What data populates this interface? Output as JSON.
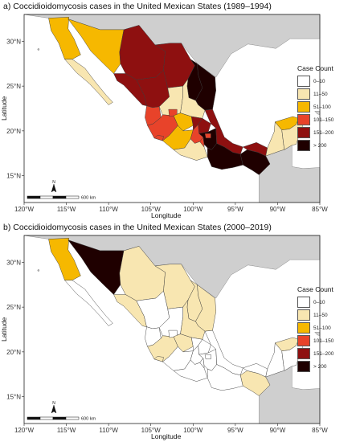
{
  "panels": [
    {
      "title": "a) Coccidioidomycosis cases in the United Mexican States (1989–1994)",
      "xlabel": "Longitude",
      "ylabel": "Latitude",
      "legend_title": "Case Count",
      "scale_label": "600 km",
      "north_label": "N"
    },
    {
      "title": "b) Coccidioidomycosis cases in the United Mexican States (2000–2019)",
      "xlabel": "Longitude",
      "ylabel": "Latitude",
      "legend_title": "Case Count",
      "scale_label": "600 km",
      "north_label": "N"
    }
  ],
  "legend": [
    {
      "label": "0–10",
      "color": "#ffffff"
    },
    {
      "label": "11–50",
      "color": "#f8e6b1"
    },
    {
      "label": "51–100",
      "color": "#f6b800"
    },
    {
      "label": "101–150",
      "color": "#e8432a"
    },
    {
      "label": "151–200",
      "color": "#8e1010"
    },
    {
      "label": "> 200",
      "color": "#1f0000"
    }
  ],
  "x_ticks": [
    "120°W",
    "115°W",
    "110°W",
    "105°W",
    "100°W",
    "95°W",
    "90°W",
    "85°W"
  ],
  "y_ticks": [
    "15°N",
    "20°N",
    "25°N",
    "30°N"
  ],
  "colors": {
    "background_land": "#cfcfcf",
    "ocean": "#ffffff",
    "border": "#3a3a3a"
  },
  "states_a": {
    "Baja California": "51–100",
    "Baja California Sur": "11–50",
    "Sonora": "51–100",
    "Chihuahua": "151–200",
    "Coahuila": "151–200",
    "Nuevo León": "> 200",
    "Tamaulipas": "> 200",
    "Sinaloa": "151–200",
    "Durango": "151–200",
    "Zacatecas": "11–50",
    "San Luis Potosí": "11–50",
    "Nayarit": "101–150",
    "Jalisco": "101–150",
    "Aguascalientes": "101–150",
    "Guanajuato": "51–100",
    "Querétaro": "151–200",
    "Hidalgo": "151–200",
    "Colima": "101–150",
    "Michoacán": "51–100",
    "Mexico": "101–150",
    "Guerrero": "11–50",
    "Morelos": "101–150",
    "Puebla": "> 200",
    "Tlaxcala": "101–150",
    "Veracruz": "151–200",
    "Oaxaca": "> 200",
    "Chiapas": "> 200",
    "Tabasco": "151–200",
    "Campeche": "11–50",
    "Yucatán": "51–100",
    "Quintana Roo": "11–50"
  },
  "states_b": {
    "Baja California": "51–100",
    "Baja California Sur": "0–10",
    "Sonora": "> 200",
    "Chihuahua": "11–50",
    "Coahuila": "11–50",
    "Nuevo León": "11–50",
    "Tamaulipas": "11–50",
    "Sinaloa": "11–50",
    "Durango": "0–10",
    "Zacatecas": "0–10",
    "San Luis Potosí": "11–50",
    "Nayarit": "0–10",
    "Jalisco": "11–50",
    "Aguascalientes": "0–10",
    "Guanajuato": "11–50",
    "Querétaro": "0–10",
    "Hidalgo": "0–10",
    "Colima": "11–50",
    "Michoacán": "0–10",
    "Mexico": "0–10",
    "Guerrero": "0–10",
    "Morelos": "0–10",
    "Puebla": "0–10",
    "Tlaxcala": "0–10",
    "Veracruz": "0–10",
    "Oaxaca": "0–10",
    "Chiapas": "11–50",
    "Tabasco": "0–10",
    "Campeche": "0–10",
    "Yucatán": "11–50",
    "Quintana Roo": "0–10"
  }
}
